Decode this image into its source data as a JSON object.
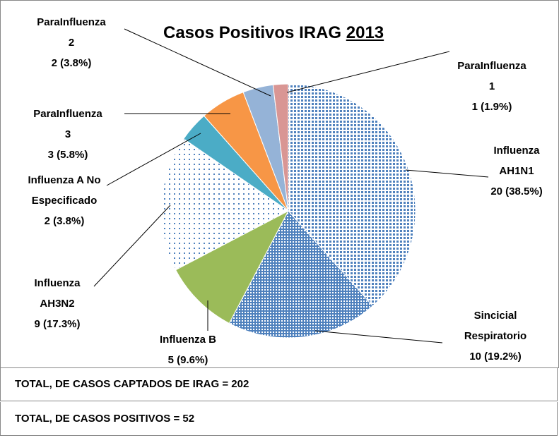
{
  "chart_data": {
    "type": "pie",
    "title": "Casos Positivos IRAG",
    "title_underlined": "2013",
    "categories": [
      "Influenza AH1N1",
      "Sincicial Respiratorio",
      "Influenza B",
      "Influenza AH3N2",
      "Influenza A No Especificado",
      "ParaInfluenza 3",
      "ParaInfluenza 2",
      "ParaInfluenza 1"
    ],
    "values": [
      20,
      10,
      5,
      9,
      2,
      3,
      2,
      1
    ],
    "value_labels": [
      "20 (38.5%)",
      "10 (19.2%)",
      "5 (9.6%)",
      "9 (17.3%)",
      "2 (3.8%)",
      "3 (5.8%)",
      "2 (3.8%)",
      "1 (1.9%)"
    ],
    "colors": [
      "#4f81bd",
      "#4f81bd",
      "#9bbb59",
      "#4f81bd",
      "#4bacc6",
      "#f79646",
      "#95b3d7",
      "#d99694"
    ],
    "patterns": [
      "dots",
      "grid",
      null,
      "sparse-dots",
      null,
      null,
      null,
      null
    ]
  },
  "footer": [
    "TOTAL, DE CASOS CAPTADOS DE IRAG = 202",
    "TOTAL, DE CASOS POSITIVOS = 52"
  ]
}
